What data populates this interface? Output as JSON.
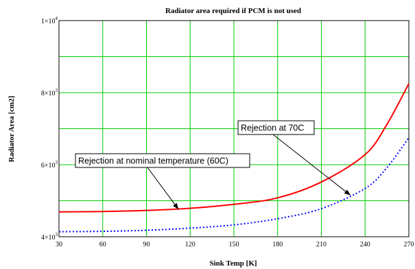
{
  "chart_data": {
    "type": "line",
    "title": "Radiator area required if PCM is not used",
    "xlabel": "Sink Temp [K]",
    "ylabel": "Radiator Area [cm2]",
    "xlim": [
      30,
      270
    ],
    "ylim": [
      4000,
      10000
    ],
    "x_ticks": [
      30,
      60,
      90,
      120,
      150,
      180,
      210,
      240,
      270
    ],
    "y_ticks": [
      {
        "value": 4000,
        "mantissa": "4",
        "exponent": "3"
      },
      {
        "value": 6000,
        "mantissa": "6",
        "exponent": "3"
      },
      {
        "value": 8000,
        "mantissa": "8",
        "exponent": "3"
      },
      {
        "value": 10000,
        "mantissa": "1",
        "exponent": "4"
      }
    ],
    "grid": true,
    "series": [
      {
        "color": "#ff0000",
        "style": "solid",
        "x": [
          30,
          60,
          90,
          120,
          150,
          180,
          210,
          240,
          255,
          270
        ],
        "values": [
          4690,
          4700,
          4730,
          4790,
          4900,
          5080,
          5520,
          6280,
          7120,
          8250
        ]
      },
      {
        "color": "#0000ff",
        "style": "dotted",
        "x": [
          30,
          60,
          90,
          120,
          150,
          180,
          210,
          240,
          255,
          270
        ],
        "values": [
          4140,
          4150,
          4180,
          4240,
          4330,
          4500,
          4780,
          5340,
          5920,
          6750
        ]
      }
    ],
    "annotations": [
      {
        "text": "Rejection at nominal temperature (60C)",
        "target_x": 112,
        "target_y": 4760
      },
      {
        "text": "Rejection at 70C",
        "target_x": 230,
        "target_y": 5150
      }
    ]
  }
}
